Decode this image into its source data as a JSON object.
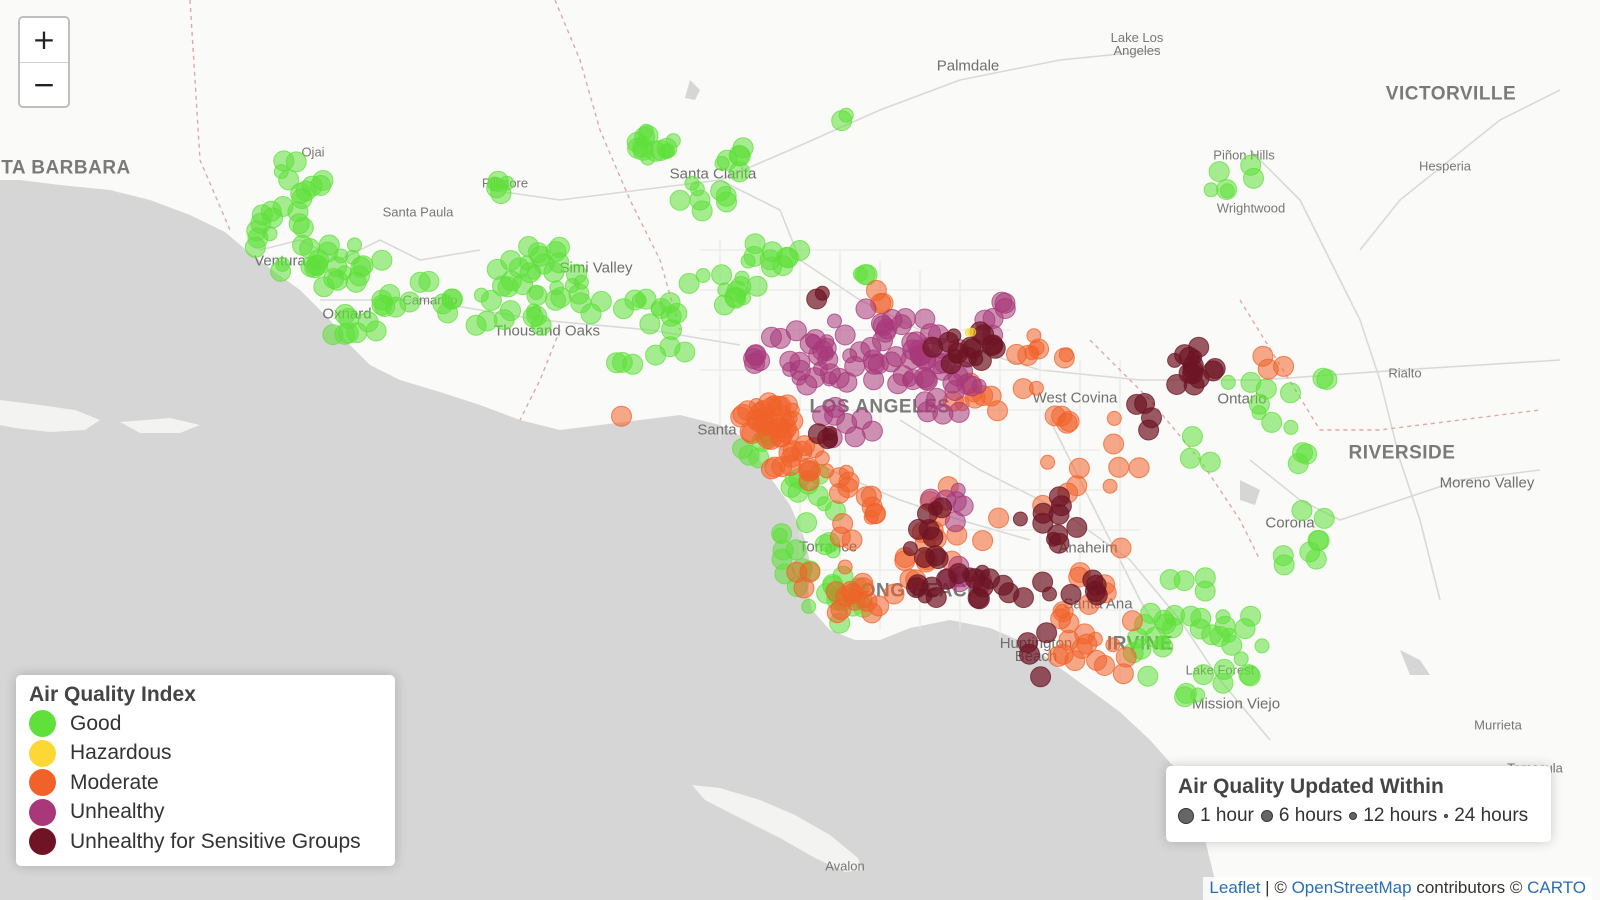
{
  "controls": {
    "zoom_in": "+",
    "zoom_out": "−"
  },
  "places": [
    {
      "name": "Lake Los Angeles",
      "cls": "small"
    },
    {
      "name": "Palmdale",
      "cls": "mid"
    },
    {
      "name": "VICTORVILLE",
      "cls": "big"
    },
    {
      "name": "TA BARBARA",
      "cls": "big"
    },
    {
      "name": "Ojai",
      "cls": "small"
    },
    {
      "name": "Fillmore",
      "cls": "small"
    },
    {
      "name": "Santa Clarita",
      "cls": "mid"
    },
    {
      "name": "Piñon Hills",
      "cls": "small"
    },
    {
      "name": "Hesperia",
      "cls": "small"
    },
    {
      "name": "Santa Paula",
      "cls": "small"
    },
    {
      "name": "Wrightwood",
      "cls": "small"
    },
    {
      "name": "Ventura",
      "cls": "mid"
    },
    {
      "name": "Simi Valley",
      "cls": "mid"
    },
    {
      "name": "Oxnard",
      "cls": "mid"
    },
    {
      "name": "Camarillo",
      "cls": "small"
    },
    {
      "name": "Thousand Oaks",
      "cls": "mid"
    },
    {
      "name": "Rialto",
      "cls": "small"
    },
    {
      "name": "West Covina",
      "cls": "mid"
    },
    {
      "name": "Ontario",
      "cls": "mid"
    },
    {
      "name": "LOS ANGELES",
      "cls": "big"
    },
    {
      "name": "Santa",
      "cls": "mid"
    },
    {
      "name": "RIVERSIDE",
      "cls": "big"
    },
    {
      "name": "Moreno Valley",
      "cls": "mid"
    },
    {
      "name": "Corona",
      "cls": "mid"
    },
    {
      "name": "Anaheim",
      "cls": "mid"
    },
    {
      "name": "Torrance",
      "cls": "mid"
    },
    {
      "name": "LONG BEACH",
      "cls": "big"
    },
    {
      "name": "Santa Ana",
      "cls": "mid"
    },
    {
      "name": "Huntington Beach",
      "cls": "mid"
    },
    {
      "name": "IRVINE",
      "cls": "big"
    },
    {
      "name": "Lake Forest",
      "cls": "small"
    },
    {
      "name": "Mission Viejo",
      "cls": "mid"
    },
    {
      "name": "Murrieta",
      "cls": "small"
    },
    {
      "name": "Temecula",
      "cls": "small"
    },
    {
      "name": "Avalon",
      "cls": "small"
    }
  ],
  "aqi_legend": {
    "title": "Air Quality Index",
    "items": [
      {
        "label": "Good",
        "color": "#5fe03a"
      },
      {
        "label": "Hazardous",
        "color": "#fdd835"
      },
      {
        "label": "Moderate",
        "color": "#f0622a"
      },
      {
        "label": "Unhealthy",
        "color": "#a8387a"
      },
      {
        "label": "Unhealthy for Sensitive Groups",
        "color": "#6e1424"
      }
    ]
  },
  "updated_legend": {
    "title": "Air Quality Updated Within",
    "items": [
      {
        "label": "1 hour",
        "size": 16
      },
      {
        "label": "6 hours",
        "size": 12
      },
      {
        "label": "12 hours",
        "size": 8
      },
      {
        "label": "24 hours",
        "size": 4
      }
    ]
  },
  "attribution": {
    "leaflet": "Leaflet",
    "sep1": " | © ",
    "osm": "OpenStreetMap",
    "mid": " contributors © ",
    "carto": "CARTO"
  }
}
